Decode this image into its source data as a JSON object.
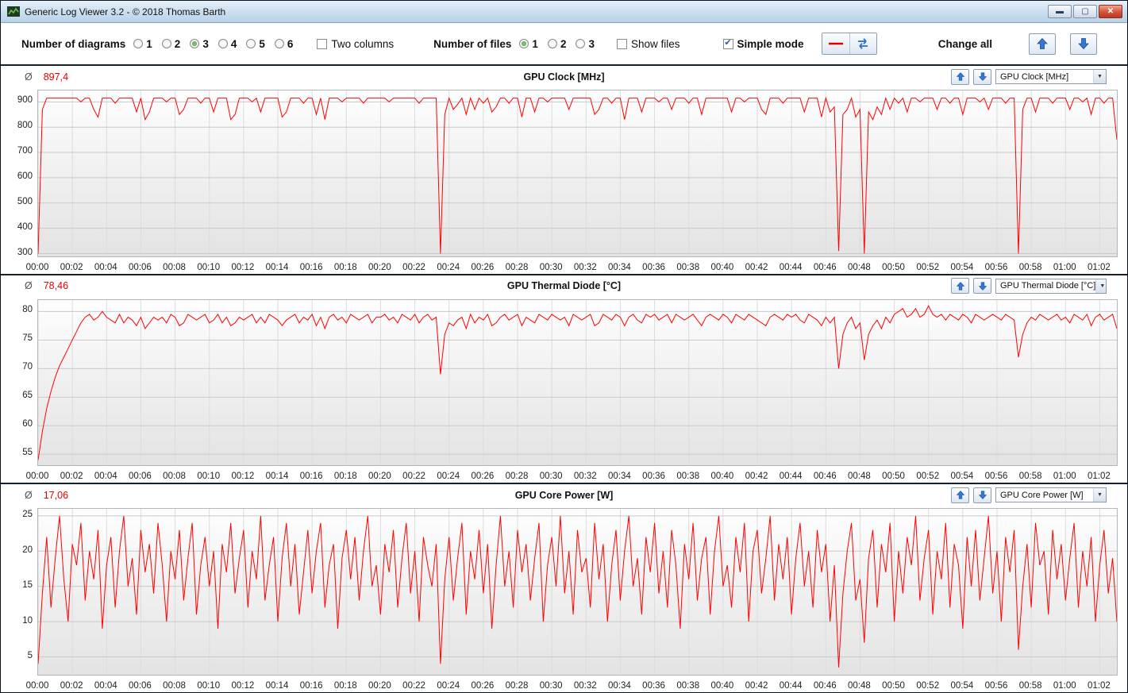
{
  "window": {
    "title": "Generic Log Viewer 3.2 - © 2018 Thomas Barth",
    "minimize_glyph": "▬",
    "maximize_glyph": "▢",
    "close_glyph": "✕"
  },
  "toolbar": {
    "diagrams_label": "Number of diagrams",
    "diagram_options": [
      "1",
      "2",
      "3",
      "4",
      "5",
      "6"
    ],
    "diagram_checked": [
      false,
      false,
      true,
      false,
      false,
      false
    ],
    "two_columns_label": "Two columns",
    "two_columns_checked": false,
    "files_label": "Number of files",
    "file_options": [
      "1",
      "2",
      "3"
    ],
    "file_checked": [
      true,
      false,
      false
    ],
    "show_files_label": "Show files",
    "show_files_checked": false,
    "simple_mode_label": "Simple mode",
    "simple_mode_checked": true,
    "change_all_label": "Change all"
  },
  "x_axis": {
    "step_s": 120,
    "labels": [
      "00:00",
      "00:02",
      "00:04",
      "00:06",
      "00:08",
      "00:10",
      "00:12",
      "00:14",
      "00:16",
      "00:18",
      "00:20",
      "00:22",
      "00:24",
      "00:26",
      "00:28",
      "00:30",
      "00:32",
      "00:34",
      "00:36",
      "00:38",
      "00:40",
      "00:42",
      "00:44",
      "00:46",
      "00:48",
      "00:50",
      "00:52",
      "00:54",
      "00:56",
      "00:58",
      "01:00",
      "01:02"
    ]
  },
  "panels": [
    {
      "avg_symbol": "Ø",
      "avg_value": "897,4",
      "title": "GPU Clock [MHz]",
      "dropdown_value": "GPU Clock [MHz]",
      "chart": {
        "type": "line",
        "color": "#ff0000",
        "interval_s": 15,
        "ylim": [
          290,
          945
        ],
        "yticks": [
          900,
          800,
          700,
          600,
          500,
          400,
          300
        ],
        "values": [
          300,
          870,
          915,
          915,
          915,
          915,
          915,
          915,
          915,
          915,
          900,
          915,
          915,
          870,
          840,
          915,
          915,
          915,
          895,
          915,
          915,
          915,
          915,
          860,
          915,
          830,
          860,
          915,
          915,
          915,
          900,
          915,
          915,
          850,
          870,
          915,
          915,
          915,
          895,
          915,
          915,
          860,
          915,
          915,
          915,
          830,
          850,
          915,
          915,
          915,
          900,
          915,
          860,
          915,
          915,
          915,
          915,
          840,
          860,
          915,
          915,
          915,
          895,
          915,
          915,
          850,
          915,
          830,
          915,
          915,
          915,
          900,
          915,
          915,
          915,
          915,
          895,
          915,
          915,
          915,
          915,
          915,
          900,
          915,
          915,
          915,
          915,
          915,
          915,
          895,
          915,
          915,
          915,
          915,
          300,
          850,
          915,
          870,
          890,
          915,
          850,
          915,
          870,
          915,
          895,
          915,
          860,
          880,
          915,
          915,
          895,
          915,
          915,
          840,
          915,
          915,
          860,
          915,
          915,
          900,
          915,
          915,
          915,
          915,
          870,
          915,
          915,
          915,
          915,
          915,
          850,
          870,
          915,
          915,
          895,
          915,
          915,
          830,
          915,
          915,
          915,
          860,
          915,
          915,
          915,
          900,
          915,
          915,
          870,
          915,
          915,
          915,
          895,
          915,
          915,
          850,
          915,
          915,
          915,
          915,
          915,
          915,
          860,
          915,
          915,
          900,
          915,
          915,
          915,
          870,
          850,
          915,
          915,
          915,
          895,
          915,
          915,
          915,
          915,
          860,
          915,
          915,
          915,
          840,
          915,
          860,
          880,
          310,
          850,
          870,
          915,
          840,
          870,
          300,
          860,
          830,
          880,
          850,
          915,
          870,
          915,
          895,
          915,
          860,
          915,
          915,
          900,
          915,
          915,
          915,
          870,
          915,
          915,
          895,
          915,
          915,
          850,
          915,
          915,
          915,
          900,
          915,
          870,
          915,
          915,
          915,
          895,
          915,
          915,
          300,
          870,
          915,
          915,
          860,
          915,
          915,
          915,
          895,
          915,
          915,
          915,
          870,
          915,
          915,
          900,
          915,
          850,
          915,
          915,
          895,
          915,
          915,
          750
        ]
      }
    },
    {
      "avg_symbol": "Ø",
      "avg_value": "78,46",
      "title": "GPU Thermal Diode [°C]",
      "dropdown_value": "GPU Thermal Diode [°C]",
      "chart": {
        "type": "line",
        "color": "#ff0000",
        "interval_s": 15,
        "ylim": [
          53,
          82
        ],
        "yticks": [
          80,
          75,
          70,
          65,
          60,
          55
        ],
        "values": [
          54,
          59,
          63,
          66,
          68.5,
          70.5,
          72,
          73.5,
          75,
          76.5,
          78,
          79,
          79.5,
          78.5,
          79,
          80,
          79,
          78.5,
          78,
          79.5,
          78,
          79,
          78.5,
          77.5,
          79,
          77,
          78,
          79,
          78.5,
          79,
          78,
          79.5,
          79,
          77.5,
          78,
          79.5,
          79,
          78.5,
          79,
          79.5,
          78,
          78.5,
          79.5,
          78,
          79,
          77.5,
          78,
          79,
          78.5,
          79,
          79.5,
          78,
          79,
          78,
          79.5,
          79,
          78.5,
          77.5,
          78.5,
          79,
          79.5,
          78,
          79,
          78.5,
          79.5,
          77.5,
          79,
          77,
          79,
          79.5,
          78.5,
          79,
          78,
          79.5,
          79,
          78.5,
          79,
          79.5,
          78,
          79,
          79,
          79.5,
          78.5,
          79,
          78,
          79.5,
          79,
          78.5,
          79.5,
          78,
          79,
          79.5,
          78.5,
          79,
          69,
          76,
          78,
          77.5,
          78.5,
          79,
          77,
          79.5,
          78,
          79,
          78.5,
          79.5,
          77.5,
          78,
          79,
          79.5,
          78.5,
          79,
          79.5,
          77.5,
          79,
          78.5,
          78,
          79.5,
          79,
          78.5,
          79.5,
          79,
          78.5,
          79,
          77.5,
          79.5,
          79,
          78.5,
          79,
          79.5,
          77.5,
          78,
          79.5,
          79,
          78.5,
          79.5,
          79,
          77.5,
          79,
          79.5,
          78.5,
          78,
          79.5,
          79,
          79.5,
          78.5,
          79,
          79.5,
          78,
          79.5,
          79,
          78.5,
          79,
          79.5,
          78.5,
          77.5,
          79,
          79.5,
          79,
          78.5,
          79.5,
          79,
          78,
          79.5,
          79,
          78.5,
          79.5,
          79,
          78.5,
          78,
          77.5,
          79,
          79.5,
          79,
          78.5,
          79.5,
          79,
          79.5,
          78.5,
          78,
          79.5,
          79,
          78.5,
          77.5,
          79,
          78,
          79,
          70,
          76,
          78,
          79,
          77,
          78,
          71.5,
          76,
          77.5,
          78.5,
          77,
          79,
          78,
          79.5,
          80,
          80.5,
          79,
          79.5,
          80.5,
          79,
          79.5,
          81,
          79.5,
          79,
          79.5,
          78.5,
          79.5,
          79,
          78.5,
          79.5,
          79,
          78,
          79.5,
          79,
          78.5,
          79,
          79.5,
          79,
          78.5,
          79.5,
          79,
          78.5,
          72,
          76,
          78,
          79,
          78.5,
          79.5,
          79,
          78.5,
          79,
          79.5,
          78.5,
          79,
          78,
          79.5,
          79,
          78.5,
          79.5,
          77.5,
          79,
          79.5,
          78.5,
          79,
          79.5,
          77
        ]
      }
    },
    {
      "avg_symbol": "Ø",
      "avg_value": "17,06",
      "title": "GPU Core Power [W]",
      "dropdown_value": "GPU Core Power [W]",
      "chart": {
        "type": "line",
        "color": "#ff0000",
        "interval_s": 15,
        "ylim": [
          2.5,
          26
        ],
        "yticks": [
          25,
          20,
          15,
          10,
          5
        ],
        "values": [
          4,
          14,
          22,
          12,
          19,
          25,
          16,
          10,
          21,
          18,
          24,
          13,
          20,
          16,
          23,
          9,
          18,
          22,
          12,
          20,
          25,
          15,
          19,
          11,
          23,
          17,
          21,
          14,
          24,
          18,
          10,
          20,
          16,
          23,
          13,
          19,
          24,
          11,
          18,
          22,
          15,
          20,
          9,
          21,
          17,
          24,
          14,
          19,
          23,
          12,
          20,
          16,
          25,
          13,
          18,
          22,
          10,
          19,
          24,
          15,
          21,
          11,
          17,
          23,
          14,
          20,
          24,
          12,
          18,
          21,
          9,
          19,
          23,
          16,
          22,
          13,
          20,
          25,
          15,
          18,
          11,
          21,
          17,
          23,
          12,
          19,
          24,
          14,
          20,
          10,
          22,
          18,
          15,
          21,
          4,
          16,
          22,
          13,
          19,
          24,
          11,
          20,
          16,
          23,
          14,
          21,
          9,
          18,
          25,
          15,
          20,
          12,
          23,
          17,
          21,
          13,
          19,
          24,
          10,
          18,
          22,
          15,
          25,
          14,
          20,
          11,
          23,
          17,
          19,
          12,
          24,
          16,
          21,
          10,
          18,
          23,
          13,
          20,
          25,
          15,
          19,
          11,
          22,
          17,
          24,
          14,
          20,
          12,
          23,
          18,
          9,
          21,
          16,
          24,
          13,
          19,
          22,
          11,
          20,
          25,
          15,
          18,
          12,
          22,
          17,
          24,
          10,
          20,
          23,
          14,
          19,
          25,
          13,
          21,
          16,
          22,
          11,
          19,
          24,
          15,
          20,
          12,
          23,
          17,
          21,
          10,
          18,
          3.5,
          14,
          20,
          24,
          13,
          16,
          7,
          19,
          23,
          12,
          21,
          17,
          24,
          10,
          20,
          14,
          22,
          18,
          25,
          13,
          19,
          23,
          11,
          20,
          16,
          24,
          12,
          21,
          18,
          9,
          22,
          15,
          23,
          13,
          19,
          25,
          14,
          20,
          10,
          22,
          17,
          23,
          6,
          15,
          21,
          12,
          24,
          18,
          20,
          11,
          23,
          16,
          21,
          13,
          19,
          24,
          12,
          20,
          15,
          22,
          10,
          18,
          23,
          14,
          19,
          10
        ]
      }
    }
  ]
}
